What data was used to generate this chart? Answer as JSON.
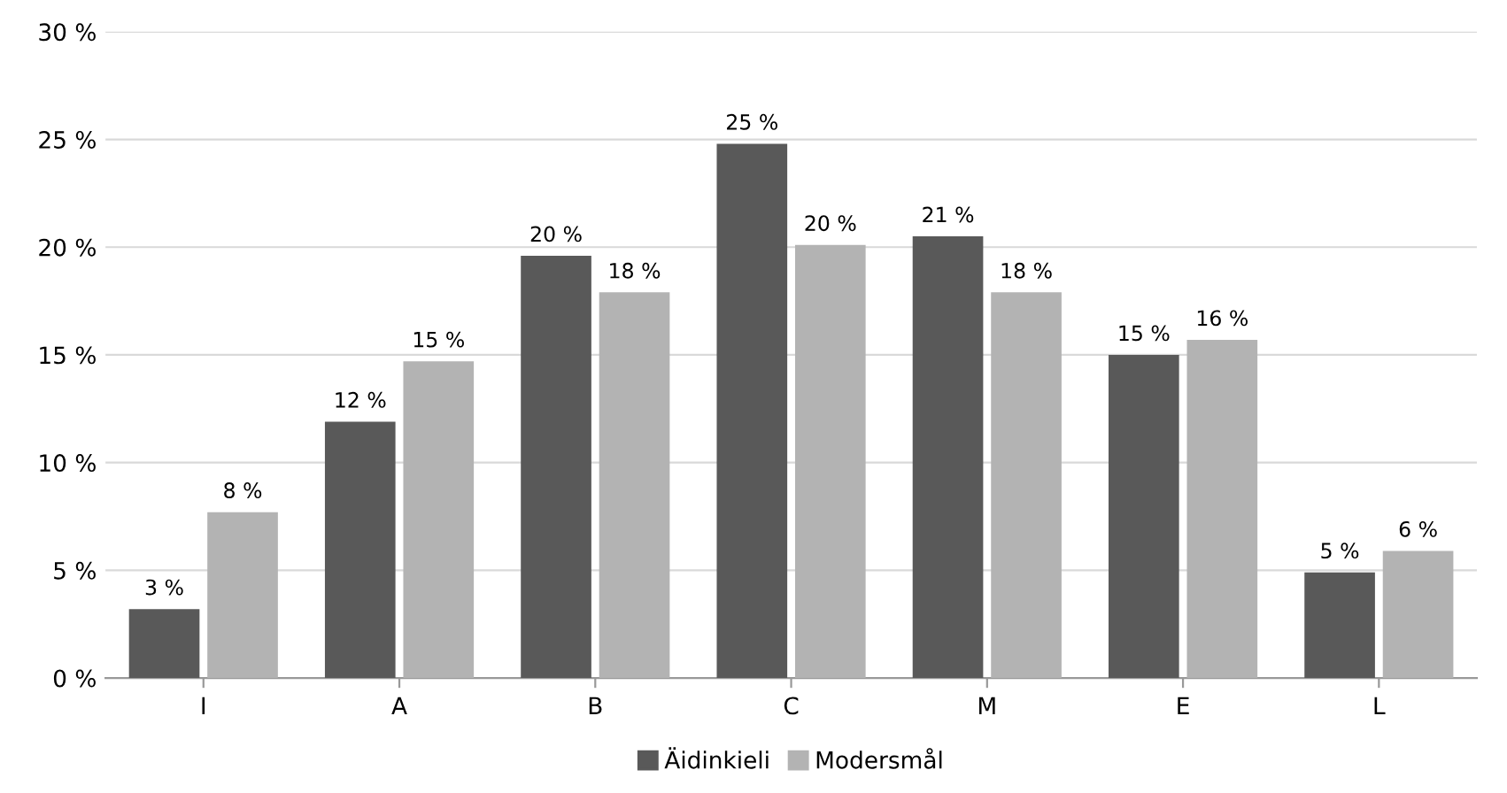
{
  "chart_data": {
    "type": "bar",
    "categories": [
      "I",
      "A",
      "B",
      "C",
      "M",
      "E",
      "L"
    ],
    "series": [
      {
        "name": "Äidinkieli",
        "color": "#595959",
        "values": [
          3.2,
          11.9,
          19.6,
          24.8,
          20.5,
          15.0,
          4.9
        ],
        "value_labels": [
          "3 %",
          "12 %",
          "20 %",
          "25 %",
          "21 %",
          "15 %",
          "5 %"
        ]
      },
      {
        "name": "Modersmål",
        "color": "#b3b3b3",
        "values": [
          7.7,
          14.7,
          17.9,
          20.1,
          17.9,
          15.7,
          5.9
        ],
        "value_labels": [
          "8 %",
          "15 %",
          "18 %",
          "20 %",
          "18 %",
          "16 %",
          "6 %"
        ]
      }
    ],
    "ylim": [
      0,
      30
    ],
    "yticks": [
      {
        "value": 0,
        "label": "0 %"
      },
      {
        "value": 5,
        "label": "5 %"
      },
      {
        "value": 10,
        "label": "10 %"
      },
      {
        "value": 15,
        "label": "15 %"
      },
      {
        "value": 20,
        "label": "20 %"
      },
      {
        "value": 25,
        "label": "25 %"
      },
      {
        "value": 30,
        "label": "30 %"
      }
    ],
    "grid": "y",
    "legend": "bottom"
  }
}
